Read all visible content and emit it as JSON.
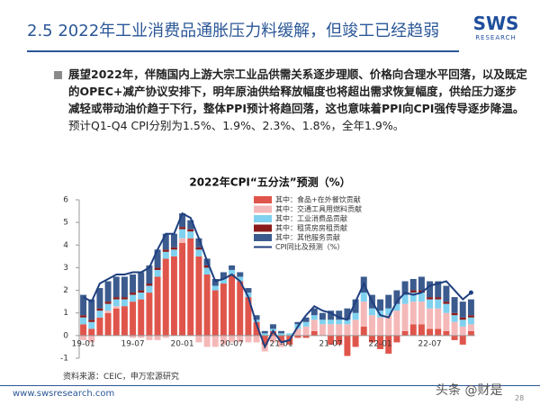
{
  "header": {
    "title": "2.5 2022年工业消费品通胀压力料缓解，但竣工已经趋弱",
    "logo": "SWS",
    "logo_sub": "RESEARCH"
  },
  "bullet": {
    "bold": "展望2022年，伴随国内上游大宗工业品供需关系逐步理顺、价格向合理水平回落，以及既定的OPEC+减产协议安排下，明年原油供给释放幅度也将超出需求恢复幅度，供给压力逐步减轻或带动油价趋于下行，整体PPI预计将趋回落，这也意味着PPI向CPI强传导逐步降温。",
    "normal": "预计Q1-Q4 CPI分别为1.5%、1.9%、2.3%、1.8%，全年1.9%。"
  },
  "chart_data": {
    "type": "bar",
    "stacked": true,
    "title": "2022年CPI“五分法”预测（%）",
    "categories": [
      "19-01",
      null,
      null,
      null,
      null,
      null,
      "19-07",
      null,
      null,
      null,
      null,
      null,
      "20-01",
      null,
      null,
      null,
      null,
      null,
      "20-07",
      null,
      null,
      null,
      null,
      null,
      "21-01",
      null,
      null,
      null,
      null,
      null,
      "21-07",
      null,
      null,
      null,
      null,
      null,
      "22-01",
      null,
      null,
      null,
      null,
      null,
      "22-07",
      null,
      null,
      null,
      null,
      null
    ],
    "ylim": [
      -1,
      6
    ],
    "yticks": [
      -1,
      0,
      1,
      2,
      3,
      4,
      5,
      6
    ],
    "series": [
      {
        "name": "其中：食品+在外餐饮贡献",
        "type": "bar",
        "color": "#e0554b",
        "values": [
          0.5,
          0.3,
          0.8,
          1.0,
          1.2,
          1.3,
          1.5,
          1.6,
          1.9,
          2.6,
          3.4,
          3.5,
          4.1,
          4.3,
          3.5,
          2.7,
          2.0,
          2.3,
          2.7,
          2.4,
          1.7,
          0.6,
          -0.4,
          0.2,
          -0.3,
          -0.4,
          -0.1,
          -0.1,
          0.2,
          0.0,
          -0.4,
          -0.4,
          -0.9,
          -0.5,
          0.4,
          -0.3,
          -0.6,
          -0.8,
          -0.3,
          0.2,
          0.5,
          0.5,
          0.3,
          0.3,
          0.2,
          -0.2,
          -0.4,
          0.2
        ]
      },
      {
        "name": "其中：交通工具用燃料贡献",
        "type": "bar",
        "color": "#f5b8b8",
        "values": [
          -0.2,
          -0.3,
          0.0,
          0.1,
          0.1,
          0.0,
          -0.1,
          -0.1,
          -0.2,
          -0.2,
          -0.1,
          0.0,
          0.2,
          0.0,
          -0.3,
          -0.5,
          -0.5,
          -0.4,
          -0.3,
          -0.3,
          -0.3,
          -0.3,
          -0.3,
          -0.3,
          -0.2,
          0.0,
          0.3,
          0.4,
          0.5,
          0.5,
          0.5,
          0.5,
          0.5,
          0.7,
          1.1,
          0.9,
          0.8,
          0.9,
          1.1,
          1.2,
          1.0,
          1.0,
          0.9,
          0.9,
          0.8,
          0.6,
          0.4,
          0.3
        ]
      },
      {
        "name": "其中：工业消费品贡献",
        "type": "bar",
        "color": "#7fd1ef",
        "values": [
          0.3,
          0.3,
          0.3,
          0.3,
          0.3,
          0.3,
          0.3,
          0.3,
          0.3,
          0.3,
          0.3,
          0.3,
          0.4,
          0.3,
          0.3,
          0.3,
          0.2,
          0.2,
          0.2,
          0.2,
          0.2,
          0.1,
          0.1,
          0.1,
          0.1,
          0.1,
          0.2,
          0.2,
          0.2,
          0.2,
          0.2,
          0.2,
          0.2,
          0.3,
          0.4,
          0.3,
          0.3,
          0.3,
          0.3,
          0.4,
          0.4,
          0.4,
          0.4,
          0.4,
          0.4,
          0.3,
          0.3,
          0.3
        ]
      },
      {
        "name": "其中：租赁房房租贡献",
        "type": "bar",
        "color": "#8b1c1c",
        "values": [
          0.1,
          0.1,
          0.1,
          0.1,
          0.1,
          0.1,
          0.1,
          0.1,
          0.1,
          0.1,
          0.1,
          0.1,
          0.1,
          0.1,
          0.1,
          0.1,
          0.0,
          0.0,
          0.0,
          0.0,
          0.0,
          0.0,
          0.0,
          0.0,
          0.0,
          0.0,
          0.0,
          0.0,
          0.0,
          0.0,
          0.0,
          0.0,
          0.0,
          0.0,
          0.0,
          0.0,
          0.0,
          0.0,
          0.0,
          0.0,
          0.1,
          0.1,
          0.1,
          0.1,
          0.1,
          0.1,
          0.1,
          0.1
        ]
      },
      {
        "name": "其中：其他服务贡献",
        "type": "bar",
        "color": "#3b5b8e",
        "values": [
          0.9,
          0.9,
          0.9,
          0.9,
          0.9,
          0.9,
          0.8,
          0.8,
          0.8,
          0.8,
          0.7,
          0.6,
          0.6,
          0.4,
          0.4,
          0.3,
          0.3,
          0.3,
          0.2,
          0.2,
          0.2,
          0.2,
          0.1,
          0.2,
          0.1,
          0.0,
          0.1,
          0.2,
          0.3,
          0.3,
          0.4,
          0.4,
          0.5,
          0.6,
          0.7,
          0.6,
          0.5,
          0.6,
          0.6,
          0.6,
          0.5,
          0.6,
          0.7,
          0.7,
          0.7,
          0.7,
          0.7,
          0.7
        ]
      },
      {
        "name": "CPI同比及预测（%）",
        "type": "line",
        "color": "#1f3f7f",
        "values": [
          1.7,
          1.5,
          2.3,
          2.5,
          2.7,
          2.7,
          2.8,
          2.8,
          3.0,
          3.8,
          4.5,
          4.5,
          5.4,
          5.2,
          4.3,
          3.3,
          2.4,
          2.5,
          2.7,
          2.4,
          1.7,
          0.5,
          -0.5,
          0.2,
          -0.3,
          -0.2,
          0.4,
          0.9,
          1.3,
          1.1,
          1.0,
          0.8,
          0.7,
          1.5,
          2.3,
          1.5,
          0.9,
          0.8,
          1.5,
          1.9,
          1.8,
          1.9,
          2.2,
          2.3,
          2.4,
          2.0,
          1.6,
          1.9
        ]
      }
    ]
  },
  "source": "资料来源：CEIC，申万宏源研究",
  "footer": {
    "url": "www.swsresearch.com",
    "page": "28",
    "watermark": "头条 @财是"
  }
}
